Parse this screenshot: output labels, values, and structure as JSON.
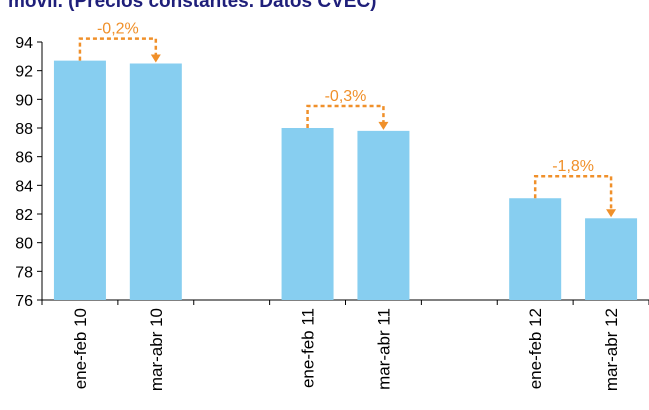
{
  "chart_data": {
    "type": "bar",
    "title": "móvil. (Precios constantes. Datos CVEC)",
    "xlabel": "",
    "ylabel": "",
    "ylim": [
      76,
      94
    ],
    "yticks": [
      76,
      78,
      80,
      82,
      84,
      86,
      88,
      90,
      92,
      94
    ],
    "grid": false,
    "categories": [
      "ene-feb 10",
      "mar-abr 10",
      "",
      "ene-feb 11",
      "mar-abr 11",
      "",
      "ene-feb 12",
      "mar-abr 12"
    ],
    "values": [
      92.7,
      92.5,
      null,
      88.0,
      87.8,
      null,
      83.1,
      81.7
    ],
    "annotations": [
      {
        "label": "-0,2%",
        "from": 0,
        "to": 1
      },
      {
        "label": "-0,3%",
        "from": 3,
        "to": 4
      },
      {
        "label": "-1,8%",
        "from": 6,
        "to": 7
      }
    ],
    "colors": {
      "bar": "#87CEF0",
      "annotation": "#F0902A",
      "axis": "#000000",
      "title": "#1f1f7a"
    }
  }
}
